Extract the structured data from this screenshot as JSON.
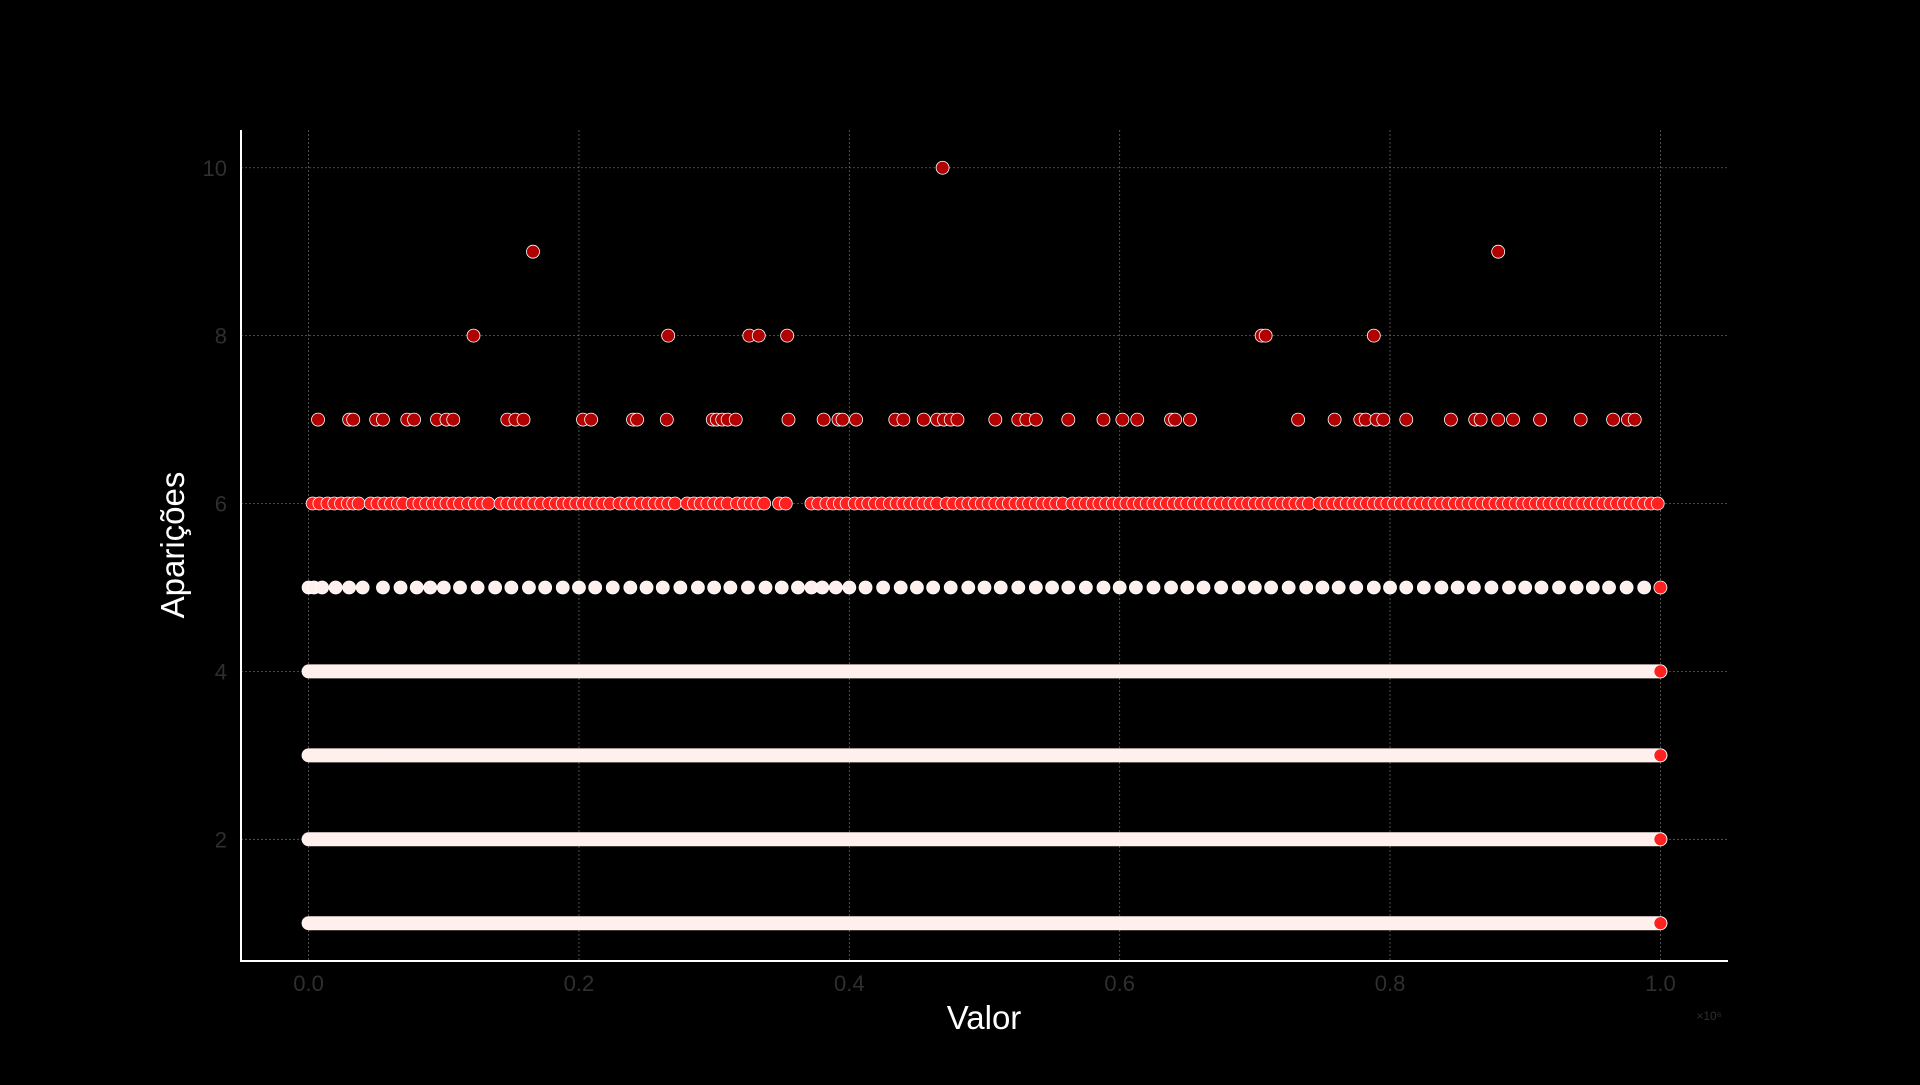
{
  "chart_data": {
    "type": "scatter",
    "xlabel": "Valor",
    "ylabel": "Aparições",
    "x_offset_label": "×10⁶",
    "xlim": [
      -0.05,
      1.05
    ],
    "ylim": [
      0.55,
      10.45
    ],
    "x_ticks": [
      0.0,
      0.2,
      0.4,
      0.6,
      0.8,
      1.0
    ],
    "x_tick_labels": [
      "0.0",
      "0.2",
      "0.4",
      "0.6",
      "0.8",
      "1.0"
    ],
    "y_ticks": [
      2,
      4,
      6,
      8,
      10
    ],
    "y_tick_labels": [
      "2",
      "4",
      "6",
      "8",
      "10"
    ],
    "grid": true,
    "x_units": "millions",
    "colors": {
      "background": "#000000",
      "grid": "#8a8a8a",
      "axis": "#ffffff",
      "marker_dark": "#b00000",
      "marker_mid": "#ff2020",
      "marker_light": "#fff0ee",
      "marker_edge": "#ffffff"
    },
    "dense_rows": [
      {
        "y": 1,
        "x_range": [
          0.0,
          1.0
        ],
        "color": "#fff0ee"
      },
      {
        "y": 2,
        "x_range": [
          0.0,
          1.0
        ],
        "color": "#fff0ee"
      },
      {
        "y": 3,
        "x_range": [
          0.0,
          1.0
        ],
        "color": "#fff0ee"
      },
      {
        "y": 4,
        "x_range": [
          0.0,
          1.0
        ],
        "color": "#fff0ee"
      }
    ],
    "row_end_points": [
      {
        "x": 1.0,
        "y": 1
      },
      {
        "x": 1.0,
        "y": 2
      },
      {
        "x": 1.0,
        "y": 3
      },
      {
        "x": 1.0,
        "y": 4
      },
      {
        "x": 1.0,
        "y": 5
      }
    ],
    "points_y5": [
      0.0,
      0.004,
      0.01,
      0.02,
      0.03,
      0.04,
      0.055,
      0.068,
      0.08,
      0.09,
      0.1,
      0.112,
      0.125,
      0.138,
      0.15,
      0.163,
      0.175,
      0.188,
      0.2,
      0.212,
      0.225,
      0.238,
      0.25,
      0.262,
      0.275,
      0.288,
      0.3,
      0.312,
      0.325,
      0.338,
      0.35,
      0.362,
      0.372,
      0.38,
      0.39,
      0.4,
      0.412,
      0.425,
      0.438,
      0.45,
      0.462,
      0.475,
      0.488,
      0.5,
      0.512,
      0.525,
      0.538,
      0.55,
      0.562,
      0.575,
      0.588,
      0.6,
      0.612,
      0.625,
      0.638,
      0.65,
      0.662,
      0.675,
      0.688,
      0.7,
      0.712,
      0.725,
      0.738,
      0.75,
      0.762,
      0.775,
      0.788,
      0.8,
      0.812,
      0.825,
      0.838,
      0.85,
      0.862,
      0.875,
      0.888,
      0.9,
      0.912,
      0.925,
      0.938,
      0.95,
      0.962,
      0.975,
      0.988
    ],
    "points_y6": [
      0.003,
      0.008,
      0.014,
      0.019,
      0.024,
      0.029,
      0.033,
      0.037,
      0.046,
      0.051,
      0.056,
      0.061,
      0.066,
      0.07,
      0.077,
      0.082,
      0.087,
      0.092,
      0.097,
      0.102,
      0.107,
      0.112,
      0.118,
      0.123,
      0.128,
      0.133,
      0.142,
      0.147,
      0.152,
      0.157,
      0.162,
      0.167,
      0.172,
      0.178,
      0.183,
      0.188,
      0.193,
      0.198,
      0.203,
      0.208,
      0.213,
      0.218,
      0.223,
      0.23,
      0.235,
      0.24,
      0.246,
      0.251,
      0.256,
      0.261,
      0.266,
      0.271,
      0.28,
      0.285,
      0.29,
      0.295,
      0.3,
      0.305,
      0.31,
      0.317,
      0.322,
      0.327,
      0.332,
      0.337,
      0.348,
      0.353,
      0.372,
      0.377,
      0.383,
      0.388,
      0.393,
      0.398,
      0.404,
      0.409,
      0.414,
      0.419,
      0.424,
      0.43,
      0.435,
      0.44,
      0.445,
      0.45,
      0.455,
      0.46,
      0.465,
      0.472,
      0.477,
      0.483,
      0.488,
      0.493,
      0.498,
      0.503,
      0.508,
      0.513,
      0.518,
      0.523,
      0.528,
      0.533,
      0.538,
      0.543,
      0.548,
      0.553,
      0.558,
      0.565,
      0.57,
      0.575,
      0.58,
      0.585,
      0.59,
      0.595,
      0.6,
      0.605,
      0.61,
      0.615,
      0.62,
      0.625,
      0.63,
      0.635,
      0.64,
      0.645,
      0.65,
      0.655,
      0.66,
      0.665,
      0.67,
      0.675,
      0.68,
      0.685,
      0.69,
      0.695,
      0.7,
      0.705,
      0.71,
      0.715,
      0.72,
      0.725,
      0.73,
      0.735,
      0.74,
      0.748,
      0.753,
      0.758,
      0.763,
      0.768,
      0.773,
      0.778,
      0.783,
      0.788,
      0.793,
      0.798,
      0.803,
      0.808,
      0.813,
      0.818,
      0.823,
      0.828,
      0.833,
      0.838,
      0.843,
      0.848,
      0.853,
      0.858,
      0.863,
      0.868,
      0.873,
      0.878,
      0.883,
      0.888,
      0.893,
      0.898,
      0.903,
      0.908,
      0.913,
      0.918,
      0.923,
      0.928,
      0.933,
      0.938,
      0.943,
      0.948,
      0.953,
      0.958,
      0.963,
      0.968,
      0.973,
      0.978,
      0.983,
      0.988,
      0.993,
      0.998
    ],
    "points_y7": [
      0.007,
      0.03,
      0.033,
      0.05,
      0.055,
      0.073,
      0.078,
      0.095,
      0.102,
      0.107,
      0.147,
      0.153,
      0.159,
      0.203,
      0.209,
      0.24,
      0.243,
      0.265,
      0.299,
      0.302,
      0.306,
      0.31,
      0.316,
      0.355,
      0.381,
      0.392,
      0.395,
      0.405,
      0.434,
      0.44,
      0.455,
      0.465,
      0.47,
      0.475,
      0.48,
      0.508,
      0.525,
      0.531,
      0.538,
      0.562,
      0.588,
      0.602,
      0.613,
      0.638,
      0.641,
      0.652,
      0.732,
      0.759,
      0.778,
      0.782,
      0.79,
      0.795,
      0.812,
      0.845,
      0.863,
      0.867,
      0.88,
      0.891,
      0.911,
      0.941,
      0.965,
      0.976,
      0.981
    ],
    "points_y8": [
      0.122,
      0.266,
      0.326,
      0.333,
      0.354,
      0.705,
      0.708,
      0.788
    ],
    "points_y9": [
      0.166,
      0.88
    ],
    "points_y10": [
      0.469
    ]
  }
}
